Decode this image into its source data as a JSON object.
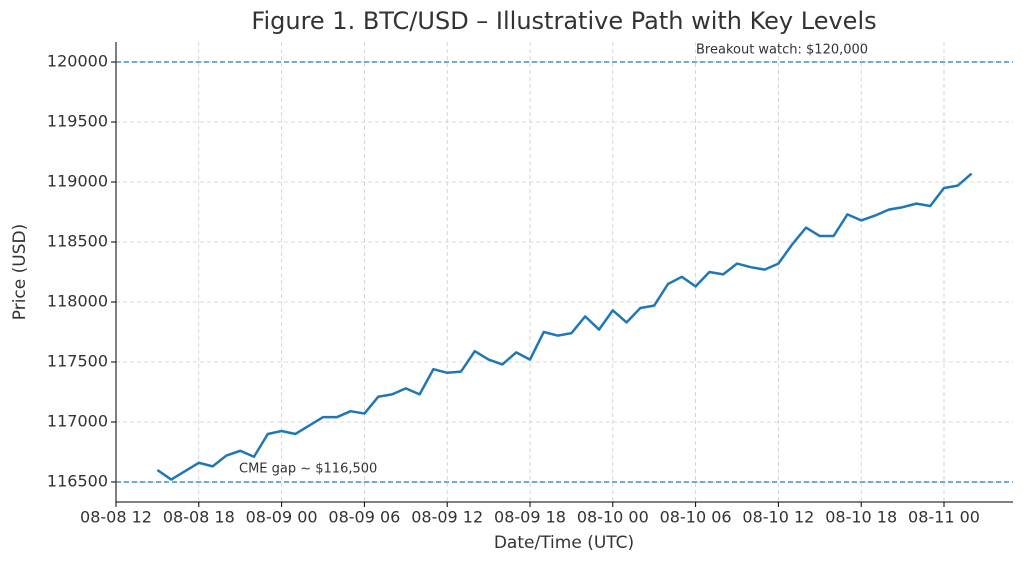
{
  "chart_data": {
    "type": "line",
    "title": "Figure 1. BTC/USD – Illustrative Path with Key Levels",
    "x_label": "Date/Time (UTC)",
    "y_label": "Price (USD)",
    "x": [
      "08-08 15",
      "08-08 16",
      "08-08 17",
      "08-08 18",
      "08-08 19",
      "08-08 20",
      "08-08 21",
      "08-08 22",
      "08-08 23",
      "08-09 00",
      "08-09 01",
      "08-09 02",
      "08-09 03",
      "08-09 04",
      "08-09 05",
      "08-09 06",
      "08-09 07",
      "08-09 08",
      "08-09 09",
      "08-09 10",
      "08-09 11",
      "08-09 12",
      "08-09 13",
      "08-09 14",
      "08-09 15",
      "08-09 16",
      "08-09 17",
      "08-09 18",
      "08-09 19",
      "08-09 20",
      "08-09 21",
      "08-09 22",
      "08-09 23",
      "08-10 00",
      "08-10 01",
      "08-10 02",
      "08-10 03",
      "08-10 04",
      "08-10 05",
      "08-10 06",
      "08-10 07",
      "08-10 08",
      "08-10 09",
      "08-10 10",
      "08-10 11",
      "08-10 12",
      "08-10 13",
      "08-10 14",
      "08-10 15",
      "08-10 16",
      "08-10 17",
      "08-10 18",
      "08-10 19",
      "08-10 20",
      "08-10 21",
      "08-10 22",
      "08-10 23",
      "08-11 00",
      "08-11 01",
      "08-11 02"
    ],
    "series": [
      {
        "name": "BTC/USD",
        "color": "#1f77b4",
        "values": [
          116600,
          116520,
          116590,
          116660,
          116630,
          116720,
          116760,
          116710,
          116900,
          116925,
          116900,
          116970,
          117040,
          117040,
          117090,
          117070,
          117210,
          117230,
          117280,
          117230,
          117440,
          117410,
          117420,
          117590,
          117520,
          117480,
          117580,
          117520,
          117750,
          117720,
          117740,
          117880,
          117770,
          117930,
          117830,
          117950,
          117970,
          118150,
          118210,
          118130,
          118250,
          118230,
          118320,
          118290,
          118270,
          118320,
          118480,
          118620,
          118550,
          118550,
          118730,
          118680,
          118720,
          118770,
          118790,
          118820,
          118800,
          118950,
          118970,
          119070
        ]
      }
    ],
    "hlines": [
      {
        "value": 120000,
        "label": "Breakout watch: $120,000",
        "color": "#1f77b4"
      },
      {
        "value": 116500,
        "label": "CME gap ~ $116,500",
        "color": "#1f77b4"
      }
    ],
    "xlim": [
      "08-08 12",
      "08-11 05"
    ],
    "xticks": [
      "08-08 12",
      "08-08 18",
      "08-09 00",
      "08-09 06",
      "08-09 12",
      "08-09 18",
      "08-10 00",
      "08-10 06",
      "08-10 12",
      "08-10 18",
      "08-11 00"
    ],
    "ylim": [
      116333,
      120167
    ],
    "yticks": [
      116500,
      117000,
      117500,
      118000,
      118500,
      119000,
      119500,
      120000
    ],
    "grid": true
  }
}
